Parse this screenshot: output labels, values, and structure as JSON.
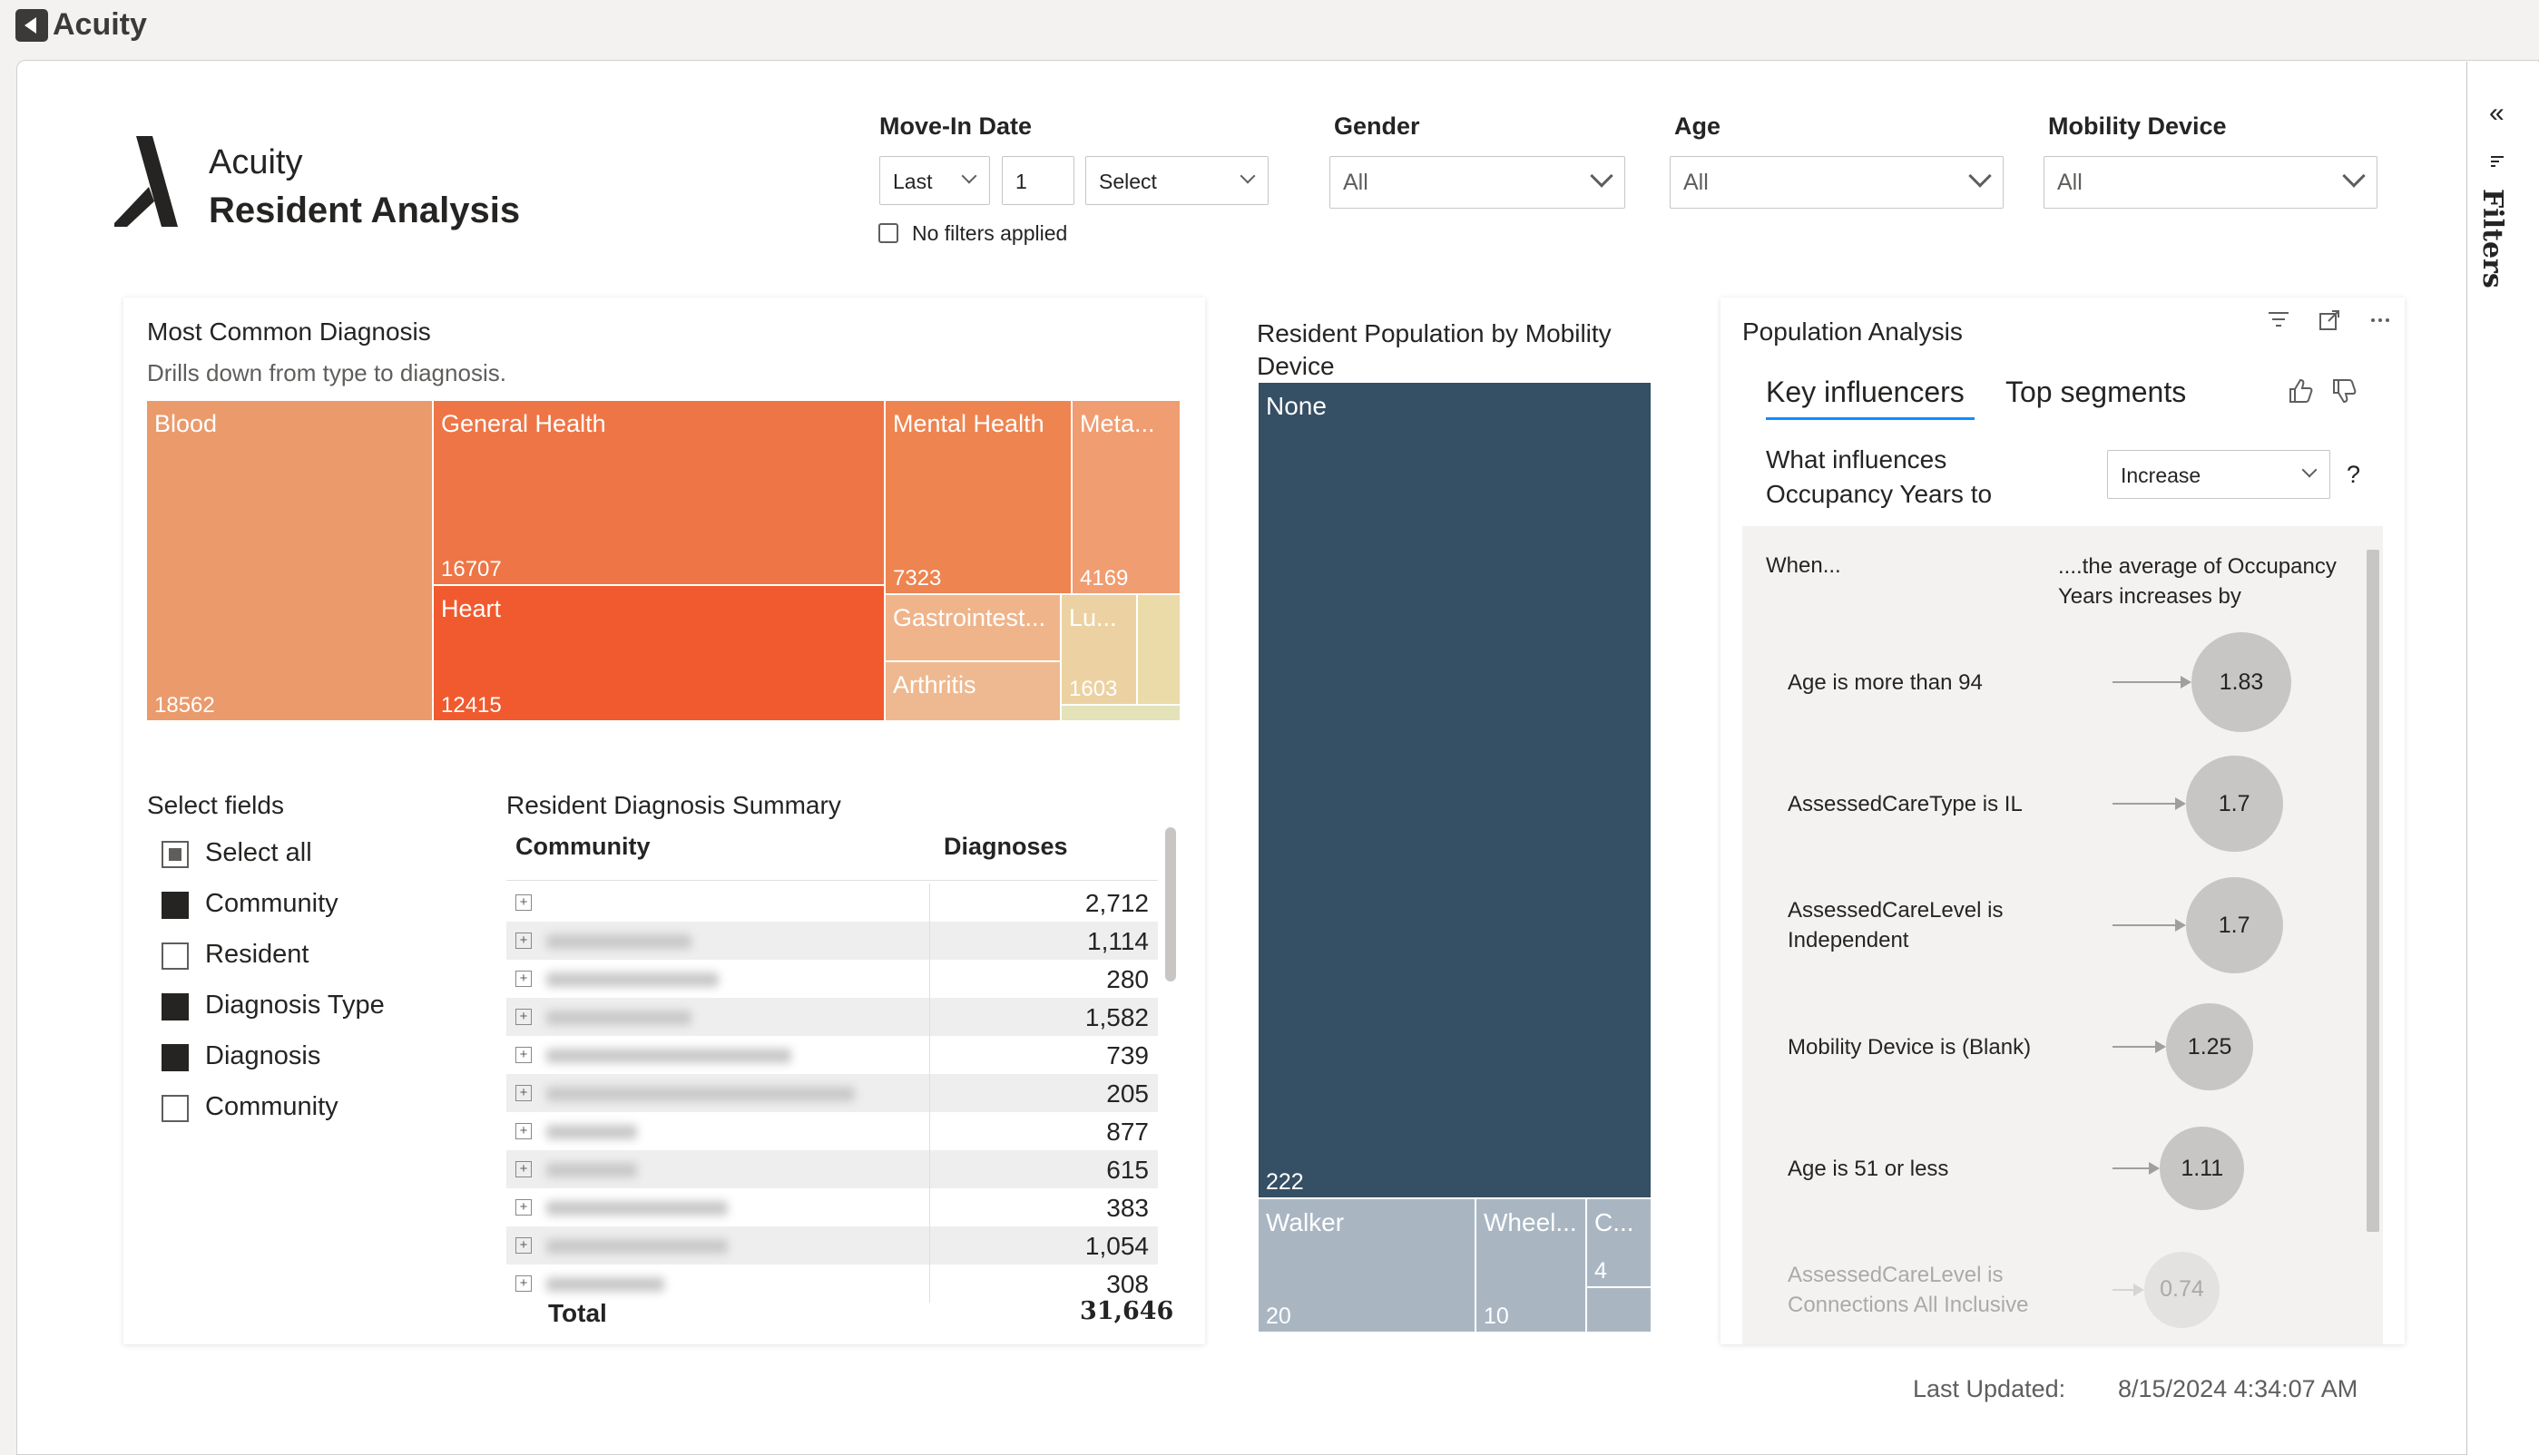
{
  "app": {
    "title": "Acuity"
  },
  "filters_pane": {
    "label": "Filters",
    "collapse_glyph": "«"
  },
  "header": {
    "brand": "Acuity",
    "title": "Resident Analysis"
  },
  "slicers": {
    "move_in": {
      "title": "Move-In Date",
      "period": "Last",
      "count": "1",
      "unit": "Select",
      "status": "No filters applied"
    },
    "gender": {
      "title": "Gender",
      "value": "All"
    },
    "age": {
      "title": "Age",
      "value": "All"
    },
    "mobility": {
      "title": "Mobility Device",
      "value": "All"
    }
  },
  "diagnosis_treemap": {
    "title": "Most Common Diagnosis",
    "subtitle": "Drills down from type to diagnosis.",
    "tiles": [
      {
        "label": "Blood",
        "value": "18562",
        "color": "#eb9a6c"
      },
      {
        "label": "General Health",
        "value": "16707",
        "color": "#ee7546"
      },
      {
        "label": "Heart",
        "value": "12415",
        "color": "#f15a2e"
      },
      {
        "label": "Mental Health",
        "value": "7323",
        "color": "#ee8450"
      },
      {
        "label": "Meta...",
        "value": "4169",
        "color": "#f09d71"
      },
      {
        "label": "Gastrointest...",
        "value": "",
        "color": "#f0b48b"
      },
      {
        "label": "Arthritis",
        "value": "",
        "color": "#eeb990"
      },
      {
        "label": "Lu...",
        "value": "1603",
        "color": "#ecd2a2"
      },
      {
        "label": "",
        "value": "",
        "color": "#eadba8"
      },
      {
        "label": "",
        "value": "",
        "color": "#e3e2b8"
      }
    ]
  },
  "select_fields": {
    "title": "Select fields",
    "items": [
      {
        "label": "Select all",
        "state": "partial"
      },
      {
        "label": "Community",
        "state": "on"
      },
      {
        "label": "Resident",
        "state": "off"
      },
      {
        "label": "Diagnosis Type",
        "state": "on"
      },
      {
        "label": "Diagnosis",
        "state": "on"
      },
      {
        "label": "Community",
        "state": "off"
      }
    ]
  },
  "summary_table": {
    "title": "Resident Diagnosis Summary",
    "col_community": "Community",
    "col_diagnoses": "Diagnoses",
    "rows": [
      "2,712",
      "1,114",
      "280",
      "1,582",
      "739",
      "205",
      "877",
      "615",
      "383",
      "1,054",
      "308"
    ],
    "total_label": "Total",
    "total_value": "31,646"
  },
  "mobility_treemap": {
    "title": "Resident Population by Mobility Device",
    "tiles": [
      {
        "label": "None",
        "value": "222",
        "color": "#354f64"
      },
      {
        "label": "Walker",
        "value": "20",
        "color": "#a9b6c2"
      },
      {
        "label": "Wheel...",
        "value": "10",
        "color": "#a9b6c2"
      },
      {
        "label": "C...",
        "value": "4",
        "color": "#a9b6c2"
      },
      {
        "label": "",
        "value": "",
        "color": "#a9b6c2"
      }
    ]
  },
  "population_analysis": {
    "title": "Population Analysis",
    "tab_key": "Key influencers",
    "tab_top": "Top segments",
    "question": "What influences Occupancy Years to",
    "direction": "Increase",
    "help": "?",
    "col_when": "When...",
    "col_effect": "....the average of Occupancy Years increases by",
    "influencers": [
      {
        "text": "Age is more than 94",
        "value": "1.83",
        "level": 1.83
      },
      {
        "text": "AssessedCareType is IL",
        "value": "1.7",
        "level": 1.7
      },
      {
        "text": "AssessedCareLevel is Independent",
        "value": "1.7",
        "level": 1.7
      },
      {
        "text": "Mobility Device is (Blank)",
        "value": "1.25",
        "level": 1.25
      },
      {
        "text": "Age is 51 or less",
        "value": "1.11",
        "level": 1.11
      },
      {
        "text": "AssessedCareLevel is Connections All Inclusive",
        "value": "0.74",
        "level": 0.74
      }
    ]
  },
  "footer": {
    "last_updated_label": "Last Updated:",
    "last_updated_value": "8/15/2024 4:34:07 AM"
  }
}
